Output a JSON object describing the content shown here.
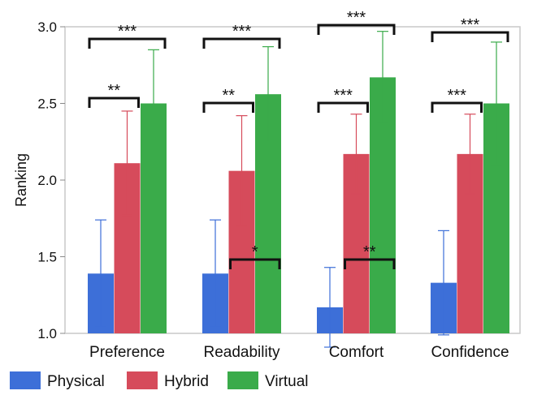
{
  "chart_data": {
    "type": "bar",
    "title": "",
    "xlabel": "",
    "ylabel": "Ranking",
    "ylim": [
      1.0,
      3.0
    ],
    "yticks": [
      "1.0",
      "1.5",
      "2.0",
      "2.5",
      "3.0"
    ],
    "categories": [
      "Preference",
      "Readability",
      "Comfort",
      "Confidence"
    ],
    "legend_position": "bottom-left",
    "grid": false,
    "series": [
      {
        "name": "Physical",
        "color": "#3d6fd8",
        "values": [
          1.39,
          1.39,
          1.17,
          1.33
        ],
        "error": [
          0.35,
          0.35,
          0.26,
          0.34
        ]
      },
      {
        "name": "Hybrid",
        "color": "#d64b5b",
        "values": [
          2.11,
          2.06,
          2.17,
          2.17
        ],
        "error": [
          0.34,
          0.36,
          0.26,
          0.26
        ]
      },
      {
        "name": "Virtual",
        "color": "#3aab4a",
        "values": [
          2.5,
          2.56,
          2.67,
          2.5
        ],
        "error": [
          0.35,
          0.31,
          0.3,
          0.4
        ]
      }
    ],
    "significance": [
      {
        "category": 0,
        "from": "Physical",
        "to": "Virtual",
        "label": "***"
      },
      {
        "category": 0,
        "from": "Physical",
        "to": "Hybrid",
        "label": "**"
      },
      {
        "category": 1,
        "from": "Physical",
        "to": "Virtual",
        "label": "***"
      },
      {
        "category": 1,
        "from": "Physical",
        "to": "Hybrid",
        "label": "**"
      },
      {
        "category": 1,
        "from": "Hybrid",
        "to": "Virtual",
        "label": "*"
      },
      {
        "category": 2,
        "from": "Physical",
        "to": "Virtual",
        "label": "***"
      },
      {
        "category": 2,
        "from": "Physical",
        "to": "Hybrid",
        "label": "***"
      },
      {
        "category": 2,
        "from": "Hybrid",
        "to": "Virtual",
        "label": "**"
      },
      {
        "category": 3,
        "from": "Physical",
        "to": "Virtual",
        "label": "***"
      },
      {
        "category": 3,
        "from": "Physical",
        "to": "Hybrid",
        "label": "***"
      }
    ]
  }
}
